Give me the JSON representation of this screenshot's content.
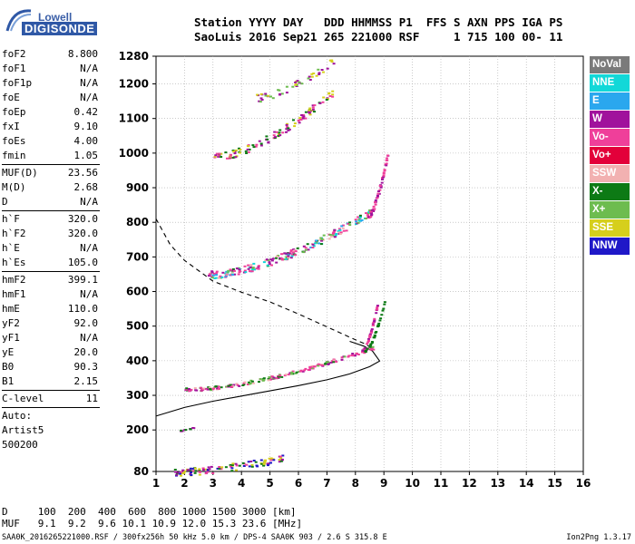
{
  "logo": {
    "line1": "Lowell",
    "line2": "DIGISONDE"
  },
  "header": {
    "line1": "Station YYYY DAY   DDD HHMMSS P1  FFS S AXN PPS IGA PS",
    "line2": "SaoLuis 2016 Sep21 265 221000 RSF     1 715 100 00- 11"
  },
  "params": {
    "group1": [
      {
        "k": "foF2",
        "v": "8.800"
      },
      {
        "k": "foF1",
        "v": "N/A"
      },
      {
        "k": "foF1p",
        "v": "N/A"
      },
      {
        "k": "foE",
        "v": "N/A"
      },
      {
        "k": "foEp",
        "v": "0.42"
      },
      {
        "k": "fxI",
        "v": "9.10"
      },
      {
        "k": "foEs",
        "v": "4.00"
      },
      {
        "k": "fmin",
        "v": "1.05"
      }
    ],
    "group2": [
      {
        "k": "MUF(D)",
        "v": "23.56"
      },
      {
        "k": "M(D)",
        "v": "2.68"
      },
      {
        "k": "D",
        "v": "N/A"
      }
    ],
    "group3": [
      {
        "k": "h`F",
        "v": "320.0"
      },
      {
        "k": "h`F2",
        "v": "320.0"
      },
      {
        "k": "h`E",
        "v": "N/A"
      },
      {
        "k": "h`Es",
        "v": "105.0"
      }
    ],
    "group4": [
      {
        "k": "hmF2",
        "v": "399.1"
      },
      {
        "k": "hmF1",
        "v": "N/A"
      },
      {
        "k": "hmE",
        "v": "110.0"
      },
      {
        "k": "yF2",
        "v": "92.0"
      },
      {
        "k": "yF1",
        "v": "N/A"
      },
      {
        "k": "yE",
        "v": "20.0"
      },
      {
        "k": "B0",
        "v": "90.3"
      },
      {
        "k": "B1",
        "v": "2.15"
      }
    ],
    "group5": [
      {
        "k": "C-level",
        "v": "11"
      }
    ],
    "auto": [
      "Auto:",
      "Artist5",
      "500200"
    ]
  },
  "legend": [
    {
      "label": "NoVal",
      "color": "#7a7a7a"
    },
    {
      "label": "NNE",
      "color": "#12d8d8"
    },
    {
      "label": "E",
      "color": "#2aa7ee"
    },
    {
      "label": "W",
      "color": "#a0129c"
    },
    {
      "label": "Vo-",
      "color": "#ef3f9a"
    },
    {
      "label": "Vo+",
      "color": "#e3003a"
    },
    {
      "label": "SSW",
      "color": "#f2b1b1"
    },
    {
      "label": "X-",
      "color": "#0d7a15"
    },
    {
      "label": "X+",
      "color": "#6dbc4f"
    },
    {
      "label": "SSE",
      "color": "#d6cf1c"
    },
    {
      "label": "NNW",
      "color": "#1f18c8"
    }
  ],
  "chart_data": {
    "type": "scatter",
    "xlim": [
      1,
      16
    ],
    "ylim": [
      80,
      1280
    ],
    "x_ticks": [
      "1",
      "2",
      "3",
      "4",
      "5",
      "6",
      "7",
      "8",
      "9",
      "10",
      "11",
      "12",
      "13",
      "14",
      "15",
      "16"
    ],
    "y_ticks": [
      "80",
      "200",
      "300",
      "400",
      "500",
      "600",
      "700",
      "800",
      "900",
      "1000",
      "1100",
      "1200",
      "1280"
    ],
    "grid": true,
    "profile_solid": [
      [
        1.0,
        240
      ],
      [
        2.0,
        265
      ],
      [
        3.0,
        283
      ],
      [
        4.0,
        298
      ],
      [
        5.0,
        313
      ],
      [
        6.0,
        328
      ],
      [
        7.0,
        345
      ],
      [
        7.8,
        362
      ],
      [
        8.5,
        383
      ],
      [
        8.85,
        399
      ],
      [
        8.6,
        428
      ],
      [
        8.3,
        442
      ],
      [
        7.8,
        456
      ]
    ],
    "profile_dashed": [
      [
        1.0,
        810
      ],
      [
        1.5,
        735
      ],
      [
        2.0,
        690
      ],
      [
        3.0,
        630
      ],
      [
        4.0,
        598
      ],
      [
        5.0,
        570
      ],
      [
        6.0,
        535
      ],
      [
        7.0,
        498
      ],
      [
        7.8,
        468
      ],
      [
        8.3,
        450
      ],
      [
        8.6,
        436
      ]
    ]
  },
  "footer": {
    "line1": "D     100  200  400  600  800 1000 1500 3000 [km]",
    "line2": "MUF   9.1  9.2  9.6 10.1 10.9 12.0 15.3 23.6 [MHz]",
    "line3": "SAA0K_2016265221000.RSF / 300fx256h 50 kHz 5.0 km / DPS-4 SAA0K 903 / 2.6 S 315.8 E",
    "version": "Ion2Png 1.3.17"
  }
}
